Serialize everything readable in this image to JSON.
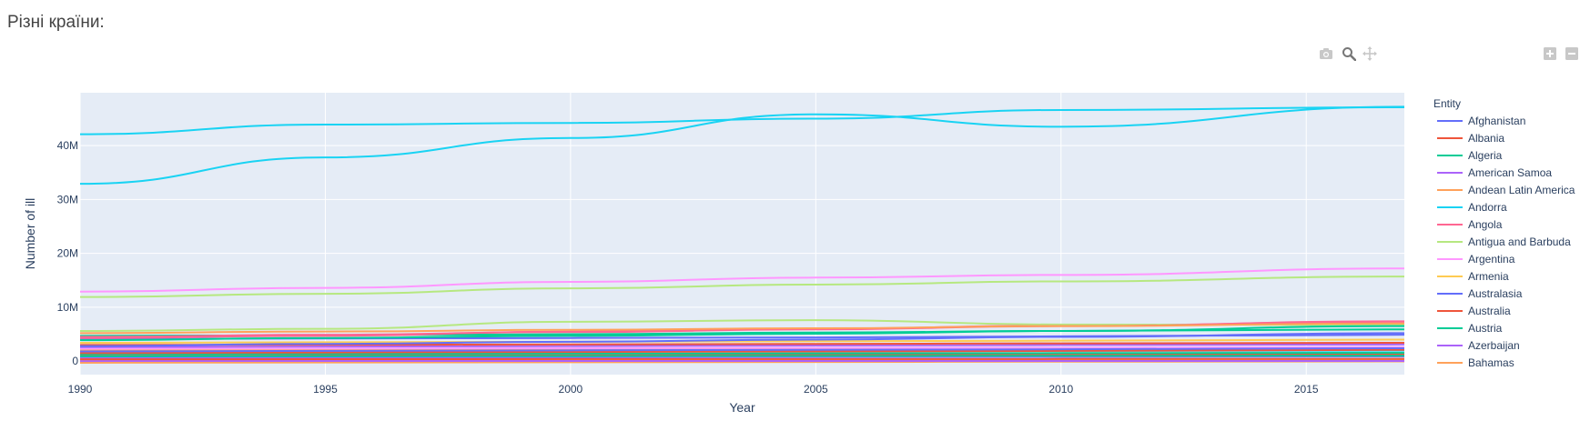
{
  "page": {
    "title": "Різні країни:"
  },
  "toolbar": {
    "icons": [
      "camera-icon",
      "zoom-icon",
      "pan-icon",
      "zoom-in-icon",
      "zoom-out-icon"
    ]
  },
  "chart_data": {
    "type": "line",
    "title": "",
    "xlabel": "Year",
    "ylabel": "Number of ill",
    "xlim": [
      1990,
      2017
    ],
    "ylim": [
      -2500000,
      49800000
    ],
    "x_ticks": [
      1990,
      1995,
      2000,
      2005,
      2010,
      2015
    ],
    "y_ticks": [
      {
        "value": 0,
        "label": "0"
      },
      {
        "value": 10000000,
        "label": "10M"
      },
      {
        "value": 20000000,
        "label": "20M"
      },
      {
        "value": 30000000,
        "label": "30M"
      },
      {
        "value": 40000000,
        "label": "40M"
      }
    ],
    "grid": true,
    "legend": {
      "title": "Entity",
      "placement": "right"
    },
    "x": [
      1990,
      1995,
      2000,
      2005,
      2010,
      2017
    ],
    "series": [
      {
        "name": "Afghanistan",
        "color": "#636efa",
        "values": [
          2800000,
          3200000,
          3600000,
          4000000,
          4500000,
          5200000
        ]
      },
      {
        "name": "Albania",
        "color": "#EF553B",
        "values": [
          350000,
          360000,
          380000,
          390000,
          400000,
          420000
        ]
      },
      {
        "name": "Algeria",
        "color": "#00cc96",
        "values": [
          3900000,
          4300000,
          4700000,
          5100000,
          5600000,
          6500000
        ]
      },
      {
        "name": "American Samoa",
        "color": "#ab63fa",
        "values": [
          20000,
          21000,
          22000,
          23000,
          24000,
          25000
        ]
      },
      {
        "name": "Andean Latin America",
        "color": "#FFA15A",
        "values": [
          5200000,
          5500000,
          5800000,
          6100000,
          6500000,
          7000000
        ]
      },
      {
        "name": "Andorra",
        "color": "#19d3f3",
        "values": [
          32900000,
          37800000,
          41400000,
          45800000,
          43500000,
          47200000
        ]
      },
      {
        "name": "Angola",
        "color": "#FF6692",
        "values": [
          4500000,
          4900000,
          5400000,
          5900000,
          6500000,
          7400000
        ]
      },
      {
        "name": "Antigua and Barbuda",
        "color": "#B6E880",
        "values": [
          11900000,
          12500000,
          13500000,
          14200000,
          14800000,
          15700000
        ]
      },
      {
        "name": "Argentina",
        "color": "#FF97FF",
        "values": [
          12900000,
          13600000,
          14700000,
          15500000,
          16000000,
          17200000
        ]
      },
      {
        "name": "Armenia",
        "color": "#FECB52",
        "values": [
          200000,
          210000,
          220000,
          230000,
          240000,
          250000
        ]
      },
      {
        "name": "Australasia",
        "color": "#636efa",
        "values": [
          1800000,
          1900000,
          2000000,
          2100000,
          2200000,
          2400000
        ]
      },
      {
        "name": "Australia",
        "color": "#EF553B",
        "values": [
          1500000,
          1600000,
          1700000,
          1800000,
          1900000,
          2100000
        ]
      },
      {
        "name": "Austria",
        "color": "#00cc96",
        "values": [
          900000,
          920000,
          940000,
          960000,
          980000,
          1000000
        ]
      },
      {
        "name": "Azerbaijan",
        "color": "#ab63fa",
        "values": [
          700000,
          740000,
          780000,
          820000,
          860000,
          900000
        ]
      },
      {
        "name": "Bahamas",
        "color": "#FFA15A",
        "values": [
          40000,
          42000,
          44000,
          46000,
          48000,
          50000
        ]
      },
      {
        "name": "",
        "color": "#19d3f3",
        "values": [
          42100000,
          43900000,
          44200000,
          45000000,
          46600000,
          47100000
        ]
      },
      {
        "name": "",
        "color": "#B6E880",
        "values": [
          5600000,
          6000000,
          7300000,
          7600000,
          6800000,
          6700000
        ]
      },
      {
        "name": "",
        "color": "#FF6692",
        "values": [
          4300000,
          4700000,
          5500000,
          6000000,
          6600000,
          7300000
        ]
      },
      {
        "name": "",
        "color": "#00cc96",
        "values": [
          4700000,
          4800000,
          5000000,
          5300000,
          5600000,
          5900000
        ]
      },
      {
        "name": "",
        "color": "#636efa",
        "values": [
          4100000,
          4200000,
          4300000,
          4400000,
          4600000,
          4900000
        ]
      },
      {
        "name": "",
        "color": "#FECB52",
        "values": [
          3400000,
          3500000,
          3600000,
          3700000,
          3800000,
          4000000
        ]
      },
      {
        "name": "",
        "color": "#EF553B",
        "values": [
          3000000,
          3050000,
          3100000,
          3200000,
          3300000,
          3400000
        ]
      },
      {
        "name": "",
        "color": "#ab63fa",
        "values": [
          2600000,
          2700000,
          2800000,
          2900000,
          3000000,
          3100000
        ]
      },
      {
        "name": "",
        "color": "#FF97FF",
        "values": [
          2300000,
          2350000,
          2400000,
          2450000,
          2500000,
          2600000
        ]
      },
      {
        "name": "",
        "color": "#FFA15A",
        "values": [
          2000000,
          2050000,
          2100000,
          2150000,
          2200000,
          2300000
        ]
      },
      {
        "name": "",
        "color": "#19d3f3",
        "values": [
          1700000,
          1750000,
          1800000,
          1850000,
          1900000,
          1950000
        ]
      },
      {
        "name": "",
        "color": "#00cc96",
        "values": [
          1300000,
          1350000,
          1400000,
          1450000,
          1500000,
          1550000
        ]
      },
      {
        "name": "",
        "color": "#EF553B",
        "values": [
          1000000,
          1050000,
          1100000,
          1150000,
          1200000,
          1250000
        ]
      },
      {
        "name": "",
        "color": "#636efa",
        "values": [
          600000,
          650000,
          700000,
          750000,
          800000,
          850000
        ]
      },
      {
        "name": "",
        "color": "#FECB52",
        "values": [
          300000,
          320000,
          340000,
          360000,
          380000,
          400000
        ]
      },
      {
        "name": "",
        "color": "#FFA15A",
        "values": [
          -300000,
          -250000,
          -200000,
          -150000,
          -100000,
          -50000
        ]
      }
    ]
  }
}
